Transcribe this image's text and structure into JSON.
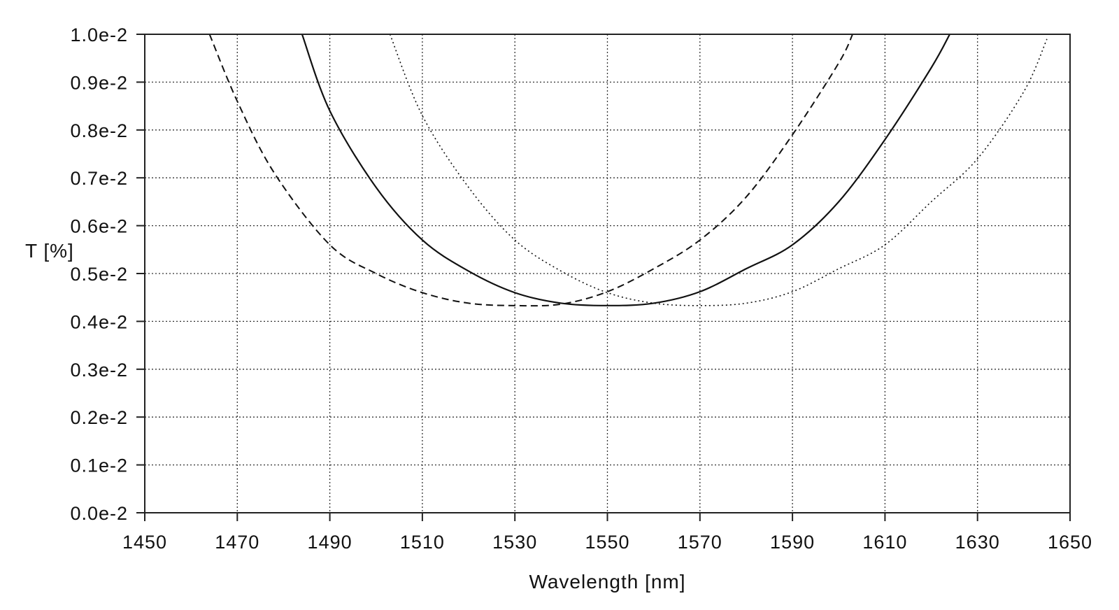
{
  "chart_data": {
    "type": "line",
    "title": "",
    "xlabel": "Wavelength [nm]",
    "ylabel": "T [%]",
    "xlim": [
      1450,
      1650
    ],
    "ylim": [
      0.0,
      0.01
    ],
    "x_ticks": [
      1450,
      1470,
      1490,
      1510,
      1530,
      1550,
      1570,
      1590,
      1610,
      1630,
      1650
    ],
    "x_tick_labels": [
      "1450",
      "1470",
      "1490",
      "1510",
      "1530",
      "1550",
      "1570",
      "1590",
      "1610",
      "1630",
      "1650"
    ],
    "y_ticks": [
      0.0,
      0.001,
      0.002,
      0.003,
      0.004,
      0.005,
      0.006,
      0.007,
      0.008,
      0.009,
      0.01
    ],
    "y_tick_labels": [
      "0.0e-2",
      "0.1e-2",
      "0.2e-2",
      "0.3e-2",
      "0.4e-2",
      "0.5e-2",
      "0.6e-2",
      "0.7e-2",
      "0.8e-2",
      "0.9e-2",
      "1.0e-2"
    ],
    "grid": true,
    "legend": "none",
    "series": [
      {
        "style": "dashed",
        "x": [
          1464,
          1470,
          1478,
          1490,
          1500,
          1510,
          1520,
          1530,
          1540,
          1550,
          1560,
          1570,
          1580,
          1590,
          1600,
          1603
        ],
        "y": [
          0.01,
          0.0086,
          0.0071,
          0.0056,
          0.005,
          0.0046,
          0.00438,
          0.00433,
          0.00436,
          0.00462,
          0.0051,
          0.0057,
          0.0066,
          0.0079,
          0.0094,
          0.01
        ]
      },
      {
        "style": "solid",
        "x": [
          1484,
          1490,
          1500,
          1510,
          1520,
          1530,
          1540,
          1550,
          1560,
          1570,
          1580,
          1590,
          1600,
          1610,
          1620,
          1624
        ],
        "y": [
          0.01,
          0.0084,
          0.0068,
          0.0057,
          0.00505,
          0.0046,
          0.00438,
          0.00433,
          0.00438,
          0.00462,
          0.0051,
          0.0056,
          0.0065,
          0.0078,
          0.0093,
          0.01
        ]
      },
      {
        "style": "dotted",
        "x": [
          1503,
          1510,
          1520,
          1530,
          1540,
          1550,
          1560,
          1570,
          1580,
          1590,
          1600,
          1610,
          1620,
          1630,
          1640,
          1645
        ],
        "y": [
          0.01,
          0.0083,
          0.0068,
          0.0057,
          0.00505,
          0.0046,
          0.00438,
          0.00433,
          0.00438,
          0.00462,
          0.0051,
          0.0056,
          0.0065,
          0.0074,
          0.0088,
          0.0099
        ]
      }
    ]
  }
}
